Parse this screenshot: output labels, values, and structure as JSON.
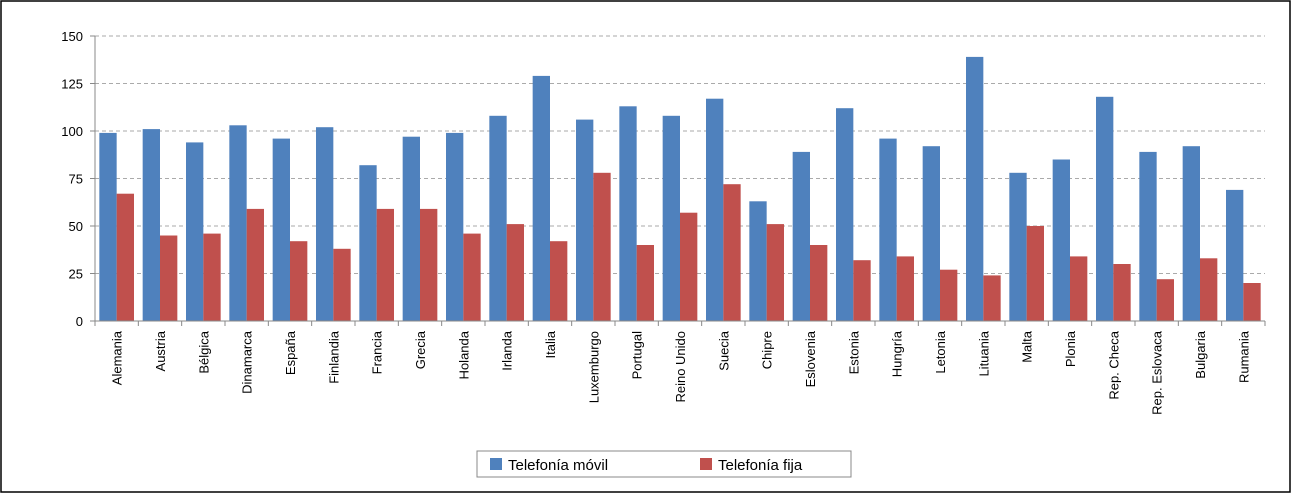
{
  "chart_data": {
    "type": "bar",
    "categories": [
      "Alemania",
      "Austria",
      "Bélgica",
      "Dinamarca",
      "España",
      "Finlandia",
      "Francia",
      "Grecia",
      "Holanda",
      "Irlanda",
      "Italia",
      "Luxemburgo",
      "Portugal",
      "Reino Unido",
      "Suecia",
      "Chipre",
      "Eslovenia",
      "Estonia",
      "Hungría",
      "Letonia",
      "Lituania",
      "Malta",
      "Plonia",
      "Rep. Checa",
      "Rep. Eslovaca",
      "Bulgaria",
      "Rumania"
    ],
    "series": [
      {
        "name": "Telefonía móvil",
        "color": "#4f81bd",
        "values": [
          99,
          101,
          94,
          103,
          96,
          102,
          82,
          97,
          99,
          108,
          129,
          106,
          113,
          108,
          117,
          63,
          89,
          112,
          96,
          92,
          139,
          78,
          85,
          118,
          89,
          92,
          69
        ]
      },
      {
        "name": "Telefonía fija",
        "color": "#c0504d",
        "values": [
          67,
          45,
          46,
          59,
          42,
          38,
          59,
          59,
          46,
          51,
          42,
          78,
          40,
          57,
          72,
          51,
          40,
          32,
          34,
          27,
          24,
          50,
          34,
          30,
          22,
          33,
          20
        ]
      }
    ],
    "ylim": [
      0,
      150
    ],
    "yticks": [
      0,
      25,
      50,
      75,
      100,
      125,
      150
    ],
    "grid": true,
    "legend": "bottom"
  }
}
